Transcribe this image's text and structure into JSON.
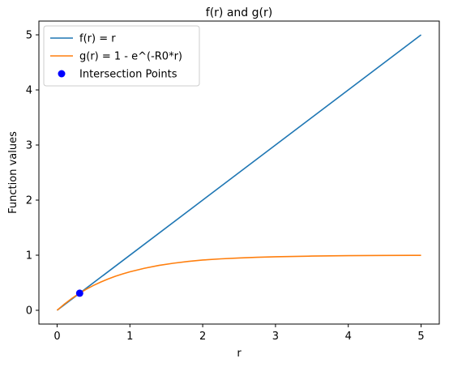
{
  "chart_data": {
    "type": "line",
    "title": "f(r) and g(r)",
    "xlabel": "r",
    "ylabel": "Function values",
    "xlim": [
      -0.25,
      5.25
    ],
    "ylim": [
      -0.25,
      5.25
    ],
    "xticks": [
      0,
      1,
      2,
      3,
      4,
      5
    ],
    "yticks": [
      0,
      1,
      2,
      3,
      4,
      5
    ],
    "grid": false,
    "legend_position": "top-left",
    "series": [
      {
        "name": "f(r) = r",
        "color": "#1f77b4",
        "x": [
          0,
          5
        ],
        "y": [
          0,
          5
        ]
      },
      {
        "name": "g(r) = 1 - e^(-R0*r)",
        "color": "#ff7f0e",
        "x": [
          0,
          0.1,
          0.2,
          0.3,
          0.4,
          0.5,
          0.6,
          0.7,
          0.8,
          0.9,
          1.0,
          1.2,
          1.4,
          1.6,
          1.8,
          2.0,
          2.25,
          2.5,
          2.75,
          3.0,
          3.5,
          4.0,
          4.5,
          5.0
        ],
        "y": [
          0,
          0.113,
          0.213,
          0.302,
          0.381,
          0.451,
          0.513,
          0.568,
          0.617,
          0.66,
          0.699,
          0.763,
          0.815,
          0.855,
          0.887,
          0.912,
          0.934,
          0.95,
          0.963,
          0.972,
          0.984,
          0.991,
          0.995,
          0.997
        ]
      }
    ],
    "points": {
      "name": "Intersection Points",
      "color": "#0000ff",
      "x": [
        0.31
      ],
      "y": [
        0.31
      ]
    }
  }
}
